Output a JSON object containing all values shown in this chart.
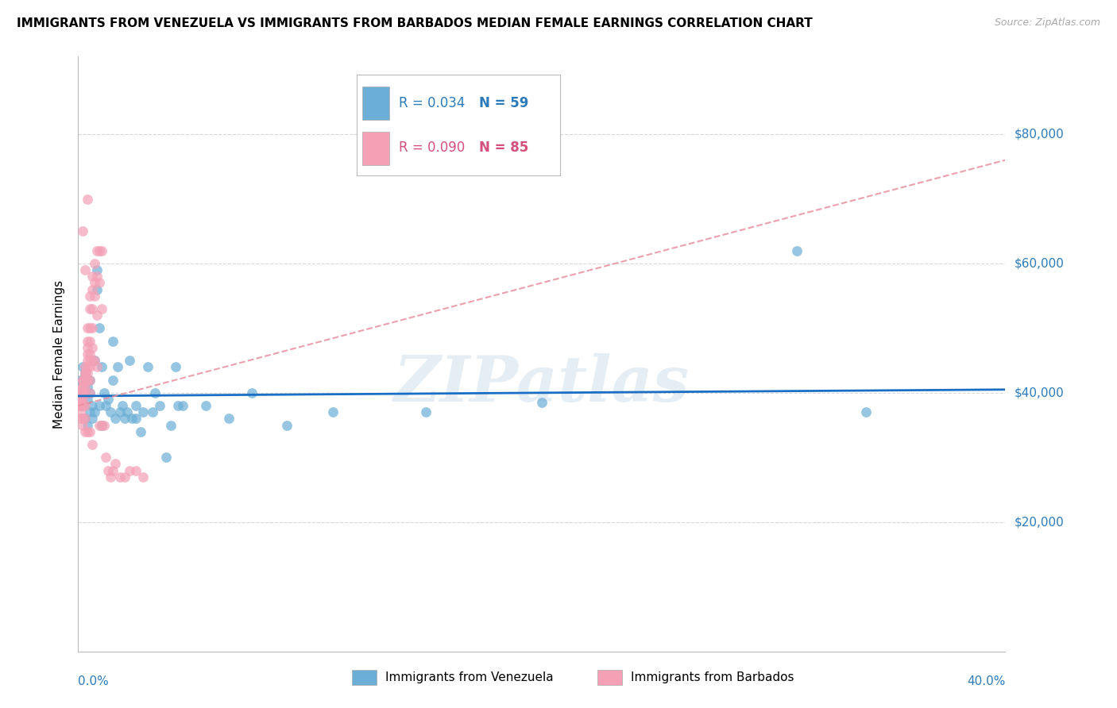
{
  "title": "IMMIGRANTS FROM VENEZUELA VS IMMIGRANTS FROM BARBADOS MEDIAN FEMALE EARNINGS CORRELATION CHART",
  "source": "Source: ZipAtlas.com",
  "ylabel": "Median Female Earnings",
  "yticks": [
    20000,
    40000,
    60000,
    80000
  ],
  "ytick_labels": [
    "$20,000",
    "$40,000",
    "$60,000",
    "$80,000"
  ],
  "xlim": [
    0.0,
    0.4
  ],
  "ylim": [
    0,
    92000
  ],
  "venezuela_color": "#6baed6",
  "barbados_color": "#f4a0b5",
  "venezuela_line_color": "#1a6fc4",
  "barbados_line_color": "#e8909f",
  "venezuela_R": 0.034,
  "venezuela_N": 59,
  "barbados_R": 0.09,
  "barbados_N": 85,
  "watermark": "ZIPatlas",
  "venezuela_scatter_x": [
    0.001,
    0.001,
    0.002,
    0.002,
    0.003,
    0.003,
    0.003,
    0.004,
    0.004,
    0.004,
    0.005,
    0.005,
    0.005,
    0.006,
    0.006,
    0.007,
    0.007,
    0.008,
    0.008,
    0.009,
    0.009,
    0.01,
    0.01,
    0.011,
    0.012,
    0.013,
    0.014,
    0.015,
    0.015,
    0.016,
    0.017,
    0.018,
    0.019,
    0.02,
    0.021,
    0.022,
    0.023,
    0.025,
    0.025,
    0.027,
    0.028,
    0.03,
    0.032,
    0.033,
    0.035,
    0.038,
    0.04,
    0.042,
    0.043,
    0.045,
    0.055,
    0.065,
    0.075,
    0.09,
    0.11,
    0.15,
    0.2,
    0.31,
    0.34
  ],
  "venezuela_scatter_y": [
    40000,
    42000,
    38000,
    44000,
    36000,
    40000,
    43000,
    35000,
    39000,
    41000,
    37000,
    40000,
    42000,
    36000,
    38000,
    37000,
    45000,
    59000,
    56000,
    38000,
    50000,
    35000,
    44000,
    40000,
    38000,
    39000,
    37000,
    42000,
    48000,
    36000,
    44000,
    37000,
    38000,
    36000,
    37000,
    45000,
    36000,
    38000,
    36000,
    34000,
    37000,
    44000,
    37000,
    40000,
    38000,
    30000,
    35000,
    44000,
    38000,
    38000,
    38000,
    36000,
    40000,
    35000,
    37000,
    37000,
    38500,
    62000,
    37000
  ],
  "barbados_scatter_x": [
    0.001,
    0.001,
    0.001,
    0.001,
    0.001,
    0.001,
    0.001,
    0.001,
    0.001,
    0.001,
    0.001,
    0.002,
    0.002,
    0.002,
    0.002,
    0.002,
    0.002,
    0.002,
    0.002,
    0.002,
    0.002,
    0.002,
    0.003,
    0.003,
    0.003,
    0.003,
    0.003,
    0.003,
    0.003,
    0.003,
    0.003,
    0.004,
    0.004,
    0.004,
    0.004,
    0.004,
    0.004,
    0.004,
    0.004,
    0.004,
    0.005,
    0.005,
    0.005,
    0.005,
    0.005,
    0.005,
    0.005,
    0.005,
    0.005,
    0.005,
    0.006,
    0.006,
    0.006,
    0.006,
    0.006,
    0.006,
    0.006,
    0.007,
    0.007,
    0.007,
    0.007,
    0.008,
    0.008,
    0.008,
    0.008,
    0.009,
    0.009,
    0.009,
    0.01,
    0.01,
    0.01,
    0.011,
    0.012,
    0.013,
    0.014,
    0.015,
    0.016,
    0.018,
    0.02,
    0.022,
    0.025,
    0.028,
    0.002,
    0.003,
    0.004
  ],
  "barbados_scatter_y": [
    40000,
    40000,
    40000,
    40000,
    39000,
    39000,
    38000,
    38000,
    38000,
    37000,
    36000,
    42000,
    42000,
    41000,
    41000,
    40000,
    40000,
    40000,
    39000,
    38000,
    36000,
    35000,
    44000,
    43000,
    43000,
    42000,
    41000,
    40000,
    38000,
    36000,
    34000,
    50000,
    48000,
    47000,
    46000,
    45000,
    44000,
    43000,
    42000,
    34000,
    55000,
    53000,
    50000,
    48000,
    46000,
    45000,
    44000,
    42000,
    40000,
    34000,
    58000,
    56000,
    53000,
    50000,
    47000,
    45000,
    32000,
    60000,
    57000,
    55000,
    45000,
    62000,
    58000,
    52000,
    44000,
    62000,
    57000,
    35000,
    62000,
    53000,
    35000,
    35000,
    30000,
    28000,
    27000,
    28000,
    29000,
    27000,
    27000,
    28000,
    28000,
    27000,
    65000,
    59000,
    70000
  ]
}
